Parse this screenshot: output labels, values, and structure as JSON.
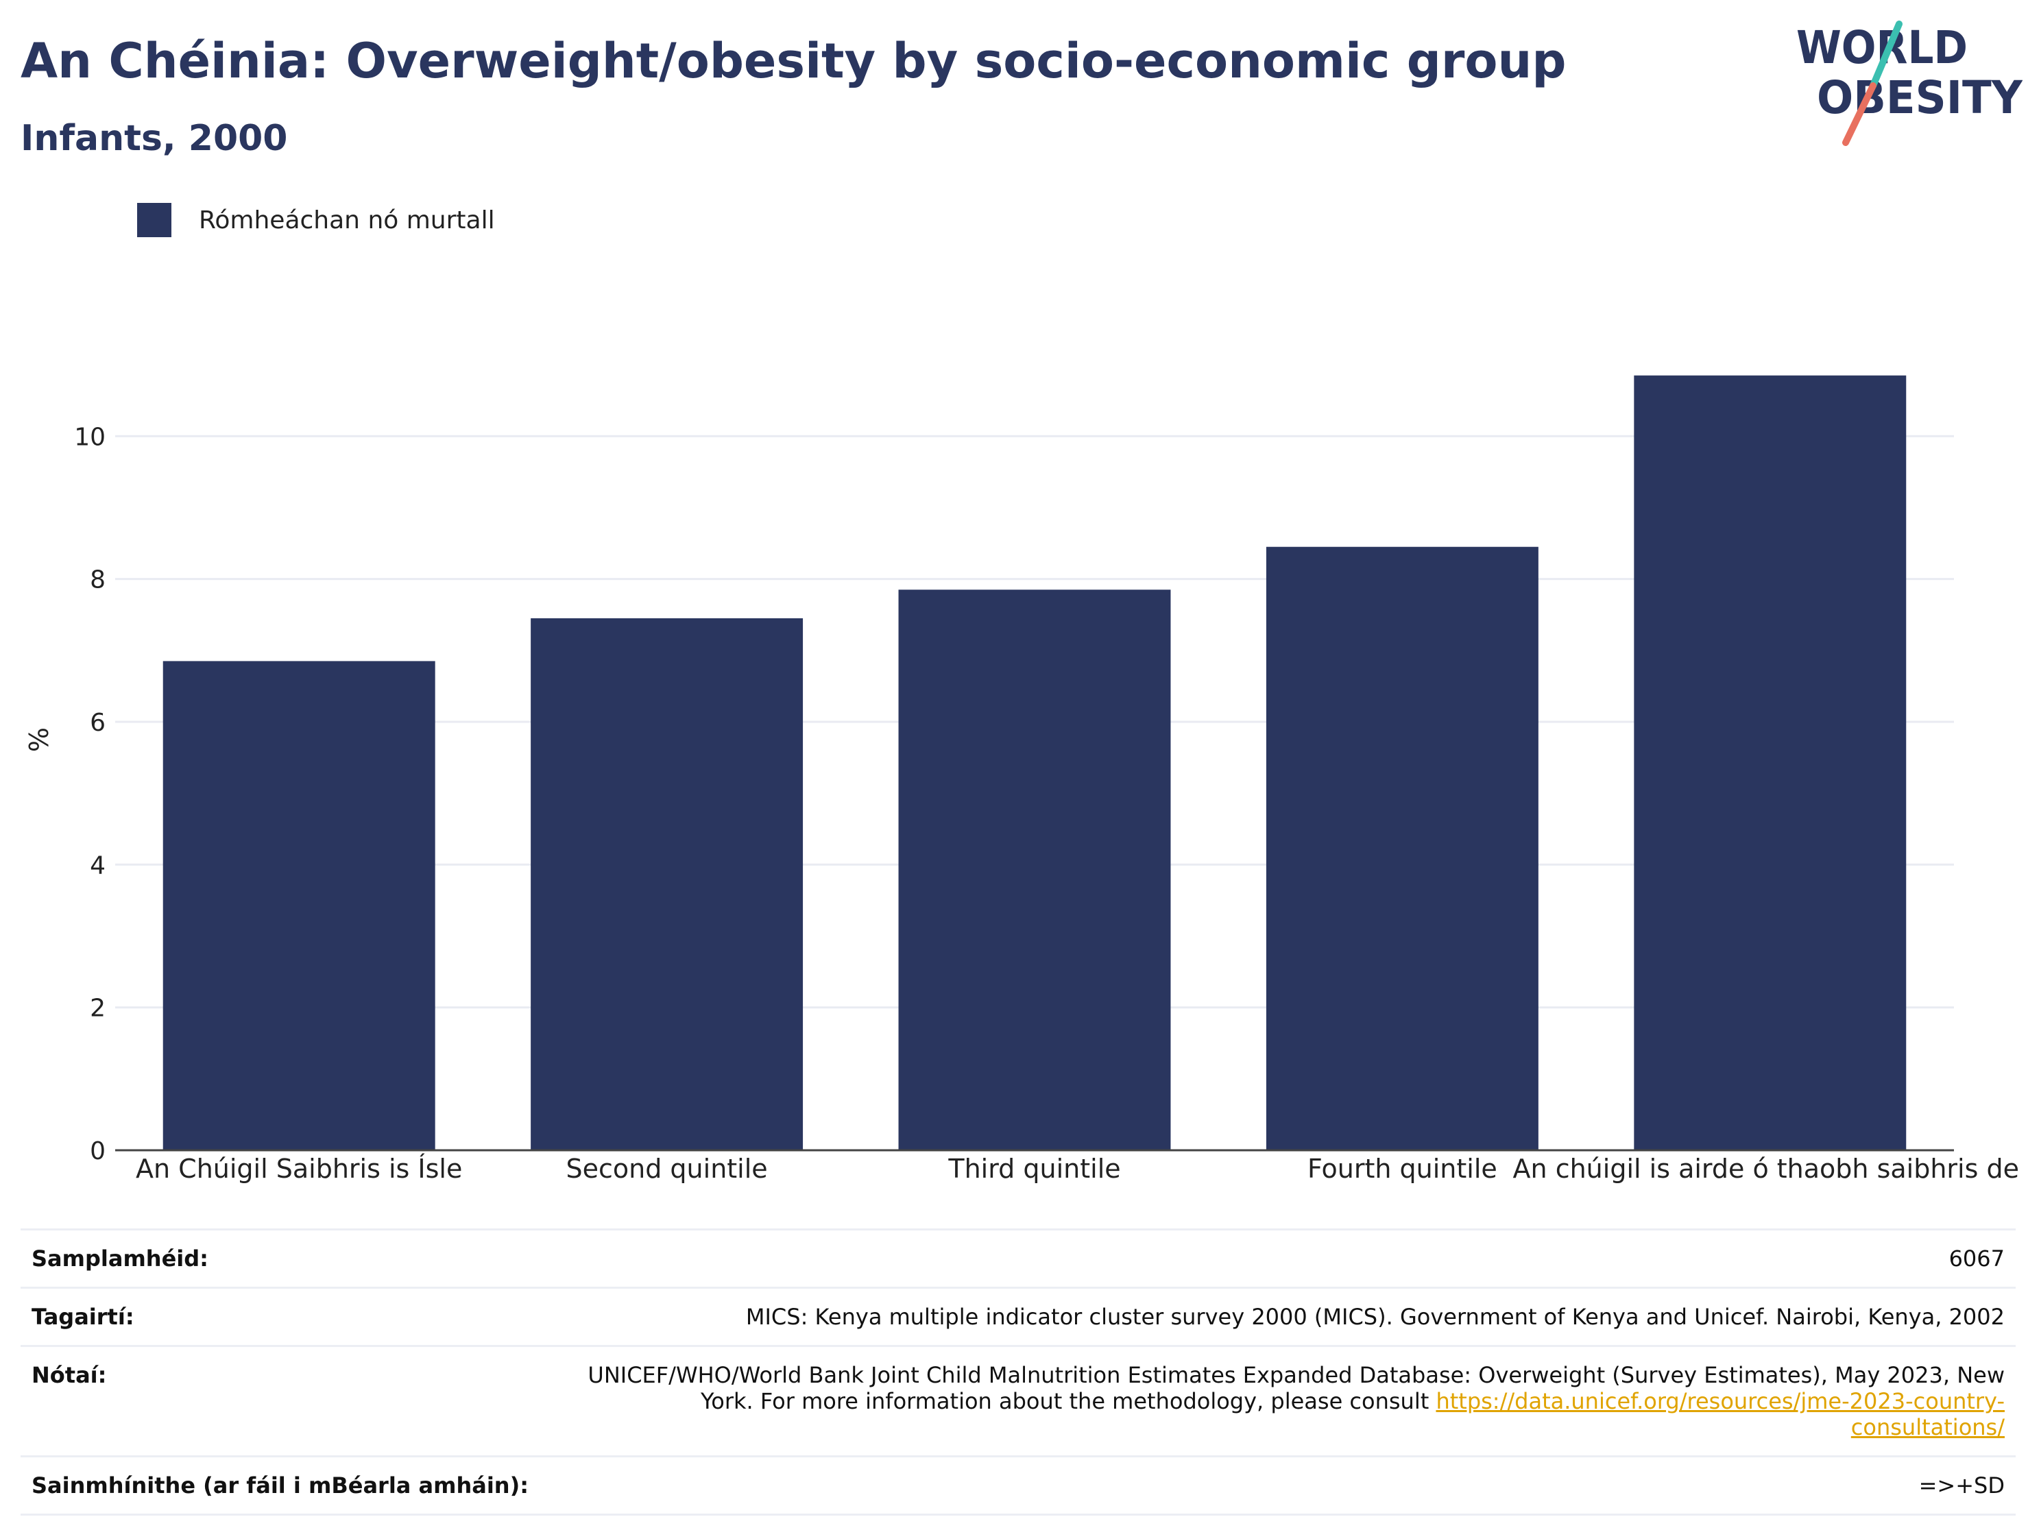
{
  "header": {
    "title": "An Chéinia: Overweight/obesity by socio-economic group",
    "subtitle": "Infants, 2000"
  },
  "logo": {
    "line1": "WORLD",
    "line2": "OBESITY",
    "colors": {
      "text": "#2a365f",
      "slash_top": "#3bbfb0",
      "slash_bottom": "#e8705f"
    }
  },
  "colors": {
    "bar": "#2a365f",
    "grid": "#e9ebf2",
    "axis": "#444444"
  },
  "chart_data": {
    "type": "bar",
    "categories": [
      "An Chúigil Saibhris is Ísle",
      "Second quintile",
      "Third quintile",
      "Fourth quintile",
      "An chúigil is airde ó thaobh saibhris de"
    ],
    "series": [
      {
        "name": "Rómheáchan nó murtall",
        "values": [
          6.85,
          7.45,
          7.85,
          8.45,
          10.85
        ]
      }
    ],
    "ylabel": "%",
    "ylim": [
      0,
      11.5
    ],
    "yticks": [
      0,
      2,
      4,
      6,
      8,
      10
    ],
    "grid": true,
    "legend": "top-left"
  },
  "info": [
    {
      "key": "Samplamhéid:",
      "value": "6067"
    },
    {
      "key": "Tagairtí:",
      "value": "MICS: Kenya multiple indicator cluster survey 2000 (MICS). Government of Kenya and Unicef. Nairobi, Kenya, 2002"
    },
    {
      "key": "Nótaí:",
      "value": "UNICEF/WHO/World Bank Joint Child Malnutrition Estimates Expanded Database: Overweight (Survey Estimates), May 2023, New York. For more information about the methodology, please consult ",
      "link": "https://data.unicef.org/resources/jme-2023-country-consultations/"
    },
    {
      "key": "Sainmhínithe (ar fáil i mBéarla amháin):",
      "value": "=>+SD"
    }
  ]
}
